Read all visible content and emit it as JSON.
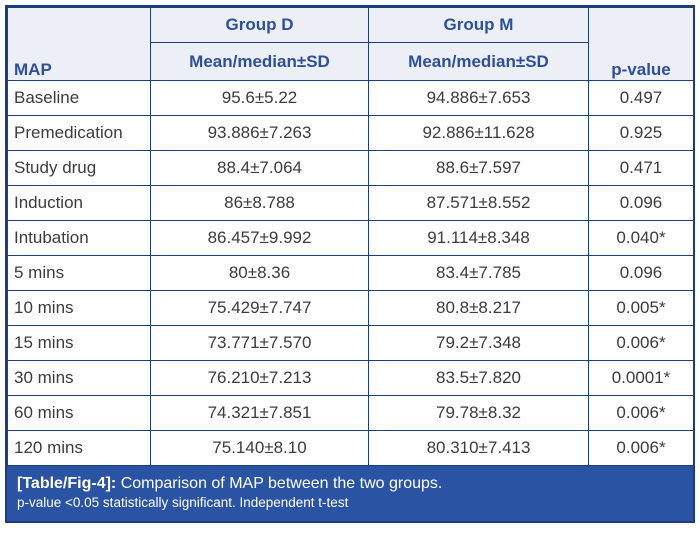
{
  "table": {
    "row_header": "MAP",
    "groups": [
      "Group D",
      "Group M"
    ],
    "sub_headers": [
      "Mean/median±SD",
      "Mean/median±SD"
    ],
    "p_header": "p-value",
    "rows": [
      {
        "label": "Baseline",
        "group_d": "95.6±5.22",
        "group_m": "94.886±7.653",
        "p_value": "0.497"
      },
      {
        "label": "Premedication",
        "group_d": "93.886±7.263",
        "group_m": "92.886±11.628",
        "p_value": "0.925"
      },
      {
        "label": "Study drug",
        "group_d": "88.4±7.064",
        "group_m": "88.6±7.597",
        "p_value": "0.471"
      },
      {
        "label": "Induction",
        "group_d": "86±8.788",
        "group_m": "87.571±8.552",
        "p_value": "0.096"
      },
      {
        "label": "Intubation",
        "group_d": "86.457±9.992",
        "group_m": "91.114±8.348",
        "p_value": "0.040*"
      },
      {
        "label": "5 mins",
        "group_d": "80±8.36",
        "group_m": "83.4±7.785",
        "p_value": "0.096"
      },
      {
        "label": "10 mins",
        "group_d": "75.429±7.747",
        "group_m": "80.8±8.217",
        "p_value": "0.005*"
      },
      {
        "label": "15 mins",
        "group_d": "73.771±7.570",
        "group_m": "79.2±7.348",
        "p_value": "0.006*"
      },
      {
        "label": "30 mins",
        "group_d": "76.210±7.213",
        "group_m": "83.5±7.820",
        "p_value": "0.0001*"
      },
      {
        "label": "60 mins",
        "group_d": "74.321±7.851",
        "group_m": "79.78±8.32",
        "p_value": "0.006*"
      },
      {
        "label": "120 mins",
        "group_d": "75.140±8.10",
        "group_m": "80.310±7.413",
        "p_value": "0.006*"
      }
    ]
  },
  "caption": {
    "tag": "[Table/Fig-4]:",
    "title": "Comparison of MAP between the two groups.",
    "note": "p-value <0.05 statistically significant. Independent t-test"
  },
  "colors": {
    "border_navy": "#1e3d7c",
    "header_background": "#edeff6",
    "header_text_blue": "#2e4f9c",
    "caption_background": "#2a54a3",
    "caption_text": "#ffffff",
    "body_text": "#3c3c3c"
  },
  "chart_data": {
    "type": "table",
    "title": "[Table/Fig-4]: Comparison of MAP between the two groups.",
    "columns": [
      "MAP",
      "Group D Mean/median±SD",
      "Group M Mean/median±SD",
      "p-value"
    ],
    "categories": [
      "Baseline",
      "Premedication",
      "Study drug",
      "Induction",
      "Intubation",
      "5 mins",
      "10 mins",
      "15 mins",
      "30 mins",
      "60 mins",
      "120 mins"
    ],
    "series": [
      {
        "name": "Group D mean",
        "values": [
          95.6,
          93.886,
          88.4,
          86,
          86.457,
          80,
          75.429,
          73.771,
          76.21,
          74.321,
          75.14
        ]
      },
      {
        "name": "Group D SD",
        "values": [
          5.22,
          7.263,
          7.064,
          8.788,
          9.992,
          8.36,
          7.747,
          7.57,
          7.213,
          7.851,
          8.1
        ]
      },
      {
        "name": "Group M mean",
        "values": [
          94.886,
          92.886,
          88.6,
          87.571,
          91.114,
          83.4,
          80.8,
          79.2,
          83.5,
          79.78,
          80.31
        ]
      },
      {
        "name": "Group M SD",
        "values": [
          7.653,
          11.628,
          7.597,
          8.552,
          8.348,
          7.785,
          8.217,
          7.348,
          7.82,
          8.32,
          7.413
        ]
      },
      {
        "name": "p-value",
        "values": [
          0.497,
          0.925,
          0.471,
          0.096,
          0.04,
          0.096,
          0.005,
          0.006,
          0.0001,
          0.006,
          0.006
        ]
      }
    ],
    "annotations": [
      "* indicates p-value <0.05 statistically significant",
      "Independent t-test"
    ]
  }
}
